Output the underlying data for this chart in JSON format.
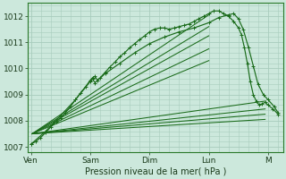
{
  "xlabel": "Pression niveau de la mer( hPa )",
  "bg_color": "#cce8dc",
  "grid_color": "#a8ccbc",
  "line_color": "#1a6b1a",
  "ylim": [
    1006.8,
    1012.5
  ],
  "xlim": [
    -0.05,
    4.25
  ],
  "yticks": [
    1007,
    1008,
    1009,
    1010,
    1011,
    1012
  ],
  "xtick_labels": [
    "Ven",
    "Sam",
    "Dim",
    "Lun",
    "M"
  ],
  "xtick_positions": [
    0,
    1,
    2,
    3,
    4
  ],
  "origin_x": 0.02,
  "origin_y": 1007.5,
  "fan_upper": [
    [
      3.0,
      1012.05
    ],
    [
      3.0,
      1011.6
    ],
    [
      3.0,
      1011.25
    ],
    [
      3.0,
      1010.75
    ],
    [
      3.0,
      1010.3
    ]
  ],
  "fan_lower": [
    [
      3.95,
      1008.75
    ],
    [
      3.95,
      1008.45
    ],
    [
      3.95,
      1008.25
    ],
    [
      3.95,
      1008.05
    ]
  ],
  "curve1_x": [
    0.0,
    0.08,
    0.16,
    0.25,
    0.33,
    0.42,
    0.5,
    0.58,
    0.67,
    0.75,
    0.83,
    0.92,
    1.0,
    1.04,
    1.08,
    1.12,
    1.17,
    1.25,
    1.33,
    1.42,
    1.5,
    1.58,
    1.67,
    1.75,
    1.83,
    1.92,
    2.0,
    2.08,
    2.17,
    2.25,
    2.33,
    2.42,
    2.5,
    2.58,
    2.67,
    2.75,
    2.83,
    2.92,
    3.0,
    3.08,
    3.17,
    3.25,
    3.33,
    3.42,
    3.5,
    3.55,
    3.6,
    3.65,
    3.7,
    3.75,
    3.8,
    3.85,
    3.9,
    3.95,
    4.0,
    4.08,
    4.17
  ],
  "curve1_y": [
    1007.1,
    1007.2,
    1007.35,
    1007.55,
    1007.75,
    1007.95,
    1008.1,
    1008.3,
    1008.55,
    1008.8,
    1009.05,
    1009.3,
    1009.55,
    1009.65,
    1009.7,
    1009.55,
    1009.65,
    1009.85,
    1010.05,
    1010.25,
    1010.45,
    1010.6,
    1010.8,
    1010.95,
    1011.1,
    1011.25,
    1011.4,
    1011.5,
    1011.55,
    1011.55,
    1011.5,
    1011.55,
    1011.6,
    1011.65,
    1011.7,
    1011.8,
    1011.9,
    1012.0,
    1012.1,
    1012.2,
    1012.2,
    1012.1,
    1012.0,
    1011.8,
    1011.55,
    1011.3,
    1010.8,
    1010.2,
    1009.5,
    1009.0,
    1008.75,
    1008.6,
    1008.65,
    1008.7,
    1008.6,
    1008.45,
    1008.25
  ],
  "curve2_x": [
    0.0,
    0.25,
    0.5,
    0.75,
    1.0,
    1.04,
    1.08,
    1.25,
    1.5,
    1.75,
    2.0,
    2.25,
    2.5,
    2.75,
    3.0,
    3.17,
    3.33,
    3.42,
    3.5,
    3.58,
    3.67,
    3.75,
    3.83,
    3.92,
    4.0,
    4.1,
    4.17
  ],
  "curve2_y": [
    1007.1,
    1007.6,
    1008.2,
    1008.8,
    1009.5,
    1009.6,
    1009.45,
    1009.8,
    1010.2,
    1010.6,
    1010.95,
    1011.2,
    1011.4,
    1011.55,
    1011.75,
    1011.95,
    1012.05,
    1012.1,
    1011.9,
    1011.5,
    1010.8,
    1010.1,
    1009.4,
    1009.0,
    1008.8,
    1008.55,
    1008.3
  ]
}
